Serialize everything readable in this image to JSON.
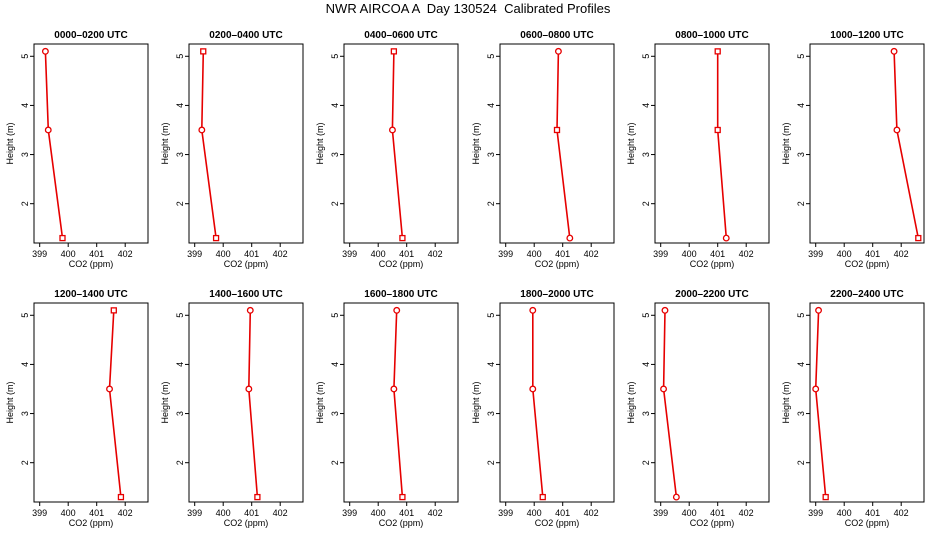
{
  "title": "NWR AIRCOA A  Day 130524  Calibrated Profiles",
  "chart_data": [
    {
      "type": "line",
      "title": "0000–0200 UTC",
      "xlabel": "CO2 (ppm)",
      "ylabel": "Height (m)",
      "xlim": [
        398.8,
        402.8
      ],
      "ylim": [
        1.2,
        5.25
      ],
      "xticks": [
        399,
        400,
        401,
        402
      ],
      "yticks": [
        2,
        3,
        4,
        5
      ],
      "series": [
        {
          "points": [
            {
              "x": 399.2,
              "y": 5.1,
              "marker": "circle"
            },
            {
              "x": 399.3,
              "y": 3.5,
              "marker": "circle"
            },
            {
              "x": 399.8,
              "y": 1.3,
              "marker": "square"
            }
          ]
        }
      ]
    },
    {
      "type": "line",
      "title": "0200–0400 UTC",
      "xlabel": "CO2 (ppm)",
      "ylabel": "Height (m)",
      "xlim": [
        398.8,
        402.8
      ],
      "ylim": [
        1.2,
        5.25
      ],
      "xticks": [
        399,
        400,
        401,
        402
      ],
      "yticks": [
        2,
        3,
        4,
        5
      ],
      "series": [
        {
          "points": [
            {
              "x": 399.3,
              "y": 5.1,
              "marker": "square"
            },
            {
              "x": 399.25,
              "y": 3.5,
              "marker": "circle"
            },
            {
              "x": 399.75,
              "y": 1.3,
              "marker": "square"
            }
          ]
        }
      ]
    },
    {
      "type": "line",
      "title": "0400–0600 UTC",
      "xlabel": "CO2 (ppm)",
      "ylabel": "Height (m)",
      "xlim": [
        398.8,
        402.8
      ],
      "ylim": [
        1.2,
        5.25
      ],
      "xticks": [
        399,
        400,
        401,
        402
      ],
      "yticks": [
        2,
        3,
        4,
        5
      ],
      "series": [
        {
          "points": [
            {
              "x": 400.55,
              "y": 5.1,
              "marker": "square"
            },
            {
              "x": 400.5,
              "y": 3.5,
              "marker": "circle"
            },
            {
              "x": 400.85,
              "y": 1.3,
              "marker": "square"
            }
          ]
        }
      ]
    },
    {
      "type": "line",
      "title": "0600–0800 UTC",
      "xlabel": "CO2 (ppm)",
      "ylabel": "Height (m)",
      "xlim": [
        398.8,
        402.8
      ],
      "ylim": [
        1.2,
        5.25
      ],
      "xticks": [
        399,
        400,
        401,
        402
      ],
      "yticks": [
        2,
        3,
        4,
        5
      ],
      "series": [
        {
          "points": [
            {
              "x": 400.85,
              "y": 5.1,
              "marker": "circle"
            },
            {
              "x": 400.8,
              "y": 3.5,
              "marker": "square"
            },
            {
              "x": 401.25,
              "y": 1.3,
              "marker": "circle"
            }
          ]
        }
      ]
    },
    {
      "type": "line",
      "title": "0800–1000 UTC",
      "xlabel": "CO2 (ppm)",
      "ylabel": "Height (m)",
      "xlim": [
        398.8,
        402.8
      ],
      "ylim": [
        1.2,
        5.25
      ],
      "xticks": [
        399,
        400,
        401,
        402
      ],
      "yticks": [
        2,
        3,
        4,
        5
      ],
      "series": [
        {
          "points": [
            {
              "x": 401.0,
              "y": 5.1,
              "marker": "square"
            },
            {
              "x": 401.0,
              "y": 3.5,
              "marker": "square"
            },
            {
              "x": 401.3,
              "y": 1.3,
              "marker": "circle"
            }
          ]
        }
      ]
    },
    {
      "type": "line",
      "title": "1000–1200 UTC",
      "xlabel": "CO2 (ppm)",
      "ylabel": "Height (m)",
      "xlim": [
        398.8,
        402.8
      ],
      "ylim": [
        1.2,
        5.25
      ],
      "xticks": [
        399,
        400,
        401,
        402
      ],
      "yticks": [
        2,
        3,
        4,
        5
      ],
      "series": [
        {
          "points": [
            {
              "x": 401.75,
              "y": 5.1,
              "marker": "circle"
            },
            {
              "x": 401.85,
              "y": 3.5,
              "marker": "circle"
            },
            {
              "x": 402.6,
              "y": 1.3,
              "marker": "square"
            }
          ]
        }
      ]
    },
    {
      "type": "line",
      "title": "1200–1400 UTC",
      "xlabel": "CO2 (ppm)",
      "ylabel": "Height (m)",
      "xlim": [
        398.8,
        402.8
      ],
      "ylim": [
        1.2,
        5.25
      ],
      "xticks": [
        399,
        400,
        401,
        402
      ],
      "yticks": [
        2,
        3,
        4,
        5
      ],
      "series": [
        {
          "points": [
            {
              "x": 401.6,
              "y": 5.1,
              "marker": "square"
            },
            {
              "x": 401.45,
              "y": 3.5,
              "marker": "circle"
            },
            {
              "x": 401.85,
              "y": 1.3,
              "marker": "square"
            }
          ]
        }
      ]
    },
    {
      "type": "line",
      "title": "1400–1600 UTC",
      "xlabel": "CO2 (ppm)",
      "ylabel": "Height (m)",
      "xlim": [
        398.8,
        402.8
      ],
      "ylim": [
        1.2,
        5.25
      ],
      "xticks": [
        399,
        400,
        401,
        402
      ],
      "yticks": [
        2,
        3,
        4,
        5
      ],
      "series": [
        {
          "points": [
            {
              "x": 400.95,
              "y": 5.1,
              "marker": "circle"
            },
            {
              "x": 400.9,
              "y": 3.5,
              "marker": "circle"
            },
            {
              "x": 401.2,
              "y": 1.3,
              "marker": "square"
            }
          ]
        }
      ]
    },
    {
      "type": "line",
      "title": "1600–1800 UTC",
      "xlabel": "CO2 (ppm)",
      "ylabel": "Height (m)",
      "xlim": [
        398.8,
        402.8
      ],
      "ylim": [
        1.2,
        5.25
      ],
      "xticks": [
        399,
        400,
        401,
        402
      ],
      "yticks": [
        2,
        3,
        4,
        5
      ],
      "series": [
        {
          "points": [
            {
              "x": 400.65,
              "y": 5.1,
              "marker": "circle"
            },
            {
              "x": 400.55,
              "y": 3.5,
              "marker": "circle"
            },
            {
              "x": 400.85,
              "y": 1.3,
              "marker": "square"
            }
          ]
        }
      ]
    },
    {
      "type": "line",
      "title": "1800–2000 UTC",
      "xlabel": "CO2 (ppm)",
      "ylabel": "Height (m)",
      "xlim": [
        398.8,
        402.8
      ],
      "ylim": [
        1.2,
        5.25
      ],
      "xticks": [
        399,
        400,
        401,
        402
      ],
      "yticks": [
        2,
        3,
        4,
        5
      ],
      "series": [
        {
          "points": [
            {
              "x": 399.95,
              "y": 5.1,
              "marker": "circle"
            },
            {
              "x": 399.95,
              "y": 3.5,
              "marker": "circle"
            },
            {
              "x": 400.3,
              "y": 1.3,
              "marker": "square"
            }
          ]
        }
      ]
    },
    {
      "type": "line",
      "title": "2000–2200 UTC",
      "xlabel": "CO2 (ppm)",
      "ylabel": "Height (m)",
      "xlim": [
        398.8,
        402.8
      ],
      "ylim": [
        1.2,
        5.25
      ],
      "xticks": [
        399,
        400,
        401,
        402
      ],
      "yticks": [
        2,
        3,
        4,
        5
      ],
      "series": [
        {
          "points": [
            {
              "x": 399.15,
              "y": 5.1,
              "marker": "circle"
            },
            {
              "x": 399.1,
              "y": 3.5,
              "marker": "circle"
            },
            {
              "x": 399.55,
              "y": 1.3,
              "marker": "circle"
            }
          ]
        }
      ]
    },
    {
      "type": "line",
      "title": "2200–2400 UTC",
      "xlabel": "CO2 (ppm)",
      "ylabel": "Height (m)",
      "xlim": [
        398.8,
        402.8
      ],
      "ylim": [
        1.2,
        5.25
      ],
      "xticks": [
        399,
        400,
        401,
        402
      ],
      "yticks": [
        2,
        3,
        4,
        5
      ],
      "series": [
        {
          "points": [
            {
              "x": 399.1,
              "y": 5.1,
              "marker": "circle"
            },
            {
              "x": 399.0,
              "y": 3.5,
              "marker": "circle"
            },
            {
              "x": 399.35,
              "y": 1.3,
              "marker": "square"
            }
          ]
        }
      ]
    }
  ],
  "colors": {
    "line": "#e60000",
    "marker": "#e60000",
    "axis": "#000000",
    "background": "#ffffff"
  }
}
